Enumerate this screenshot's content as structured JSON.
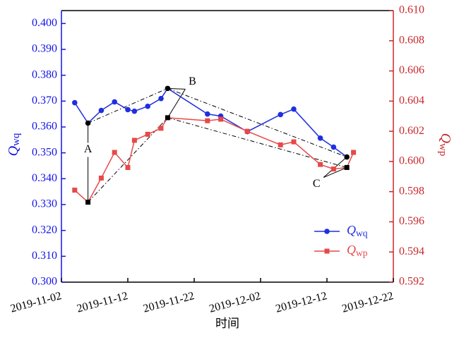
{
  "chart_data": {
    "type": "line",
    "x": [
      "2019-11-04",
      "2019-11-06",
      "2019-11-08",
      "2019-11-10",
      "2019-11-12",
      "2019-11-13",
      "2019-11-15",
      "2019-11-17",
      "2019-11-18",
      "2019-11-24",
      "2019-11-26",
      "2019-11-30",
      "2019-12-05",
      "2019-12-07",
      "2019-12-11",
      "2019-12-13",
      "2019-12-15",
      "2019-12-16"
    ],
    "series": [
      {
        "name": "Qwq",
        "color": "#1f2fe0",
        "marker": "circle",
        "values": [
          0.3694,
          0.3615,
          0.3664,
          0.3697,
          0.3667,
          0.3661,
          0.368,
          0.371,
          0.3749,
          0.365,
          0.3642,
          0.3582,
          0.3648,
          0.3669,
          0.3557,
          0.3522,
          0.3484,
          null
        ]
      },
      {
        "name": "Qwp",
        "color": "#e84848",
        "marker": "square",
        "axis": "y2",
        "values": [
          0.5981,
          0.5973,
          0.5989,
          0.6006,
          0.5996,
          0.6014,
          0.6018,
          0.6022,
          0.6029,
          0.6027,
          0.6028,
          0.602,
          0.6011,
          0.6013,
          0.5998,
          0.5995,
          0.5996,
          0.6006
        ]
      }
    ],
    "annotations": [
      {
        "text": "A",
        "x": "2019-11-06"
      },
      {
        "text": "B",
        "x": "2019-11-18"
      },
      {
        "text": "C",
        "x": "2019-12-15"
      }
    ],
    "xlabel": "时间",
    "ylabel": "Qwq",
    "y2label": "Qwp",
    "xlim": [
      "2019-11-02",
      "2019-12-22"
    ],
    "xticks": [
      "2019-11-02",
      "2019-11-12",
      "2019-11-22",
      "2019-12-02",
      "2019-12-12",
      "2019-12-22"
    ],
    "ylim": [
      0.3,
      0.405
    ],
    "yticks": [
      {
        "value": 0.3,
        "label": "0.300"
      },
      {
        "value": 0.31,
        "label": "0.310"
      },
      {
        "value": 0.32,
        "label": "0.320"
      },
      {
        "value": 0.33,
        "label": "0.330"
      },
      {
        "value": 0.34,
        "label": "0.340"
      },
      {
        "value": 0.35,
        "label": "0.350"
      },
      {
        "value": 0.36,
        "label": "0.360"
      },
      {
        "value": 0.37,
        "label": "0.370"
      },
      {
        "value": 0.38,
        "label": "0.380"
      },
      {
        "value": 0.39,
        "label": "0.390"
      },
      {
        "value": 0.4,
        "label": "0.400"
      }
    ],
    "y2lim": [
      0.592,
      0.61
    ],
    "y2ticks": [
      0.592,
      0.594,
      0.596,
      0.598,
      {
        "value": 0.6,
        "label": "0.600"
      },
      0.602,
      0.604,
      0.606,
      0.608,
      {
        "value": 0.61,
        "label": "0.610"
      }
    ],
    "left_axis_color": "#1414e6",
    "right_axis_color": "#c8282d",
    "highlight_color": "#000000",
    "legend": "lower right"
  }
}
